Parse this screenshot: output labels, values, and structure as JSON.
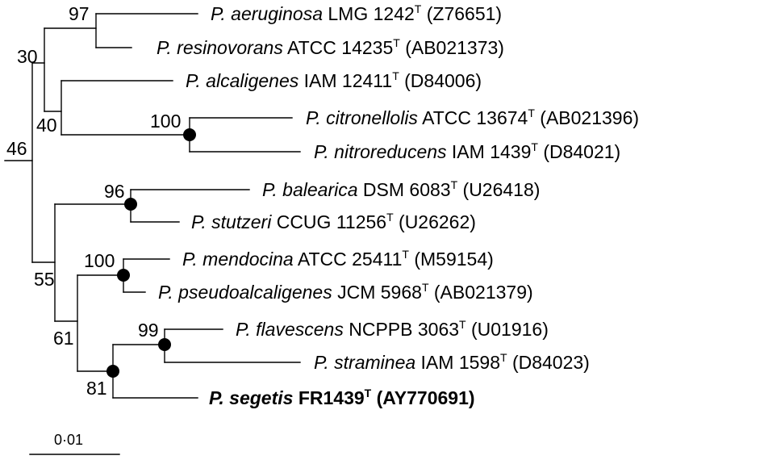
{
  "taxa": [
    {
      "id": "aeruginosa",
      "genus": "P.",
      "species": "aeruginosa",
      "strain": "LMG 1242",
      "type_mark": "T",
      "accession": "(Z76651)",
      "bold": false
    },
    {
      "id": "resinovorans",
      "genus": "P.",
      "species": "resinovorans",
      "strain": "ATCC 14235",
      "type_mark": "T",
      "accession": "(AB021373)",
      "bold": false
    },
    {
      "id": "alcaligenes",
      "genus": "P.",
      "species": "alcaligenes",
      "strain": "IAM 12411",
      "type_mark": "T",
      "accession": "(D84006)",
      "bold": false
    },
    {
      "id": "citronellolis",
      "genus": "P.",
      "species": "citronellolis",
      "strain": "ATCC 13674",
      "type_mark": "T",
      "accession": "(AB021396)",
      "bold": false
    },
    {
      "id": "nitroreducens",
      "genus": "P.",
      "species": "nitroreducens",
      "strain": "IAM 1439",
      "type_mark": "T",
      "accession": "(D84021)",
      "bold": false
    },
    {
      "id": "balearica",
      "genus": "P.",
      "species": "balearica",
      "strain": "DSM 6083",
      "type_mark": "T",
      "accession": "(U26418)",
      "bold": false
    },
    {
      "id": "stutzeri",
      "genus": "P.",
      "species": "stutzeri",
      "strain": "CCUG 11256",
      "type_mark": "T",
      "accession": "(U26262)",
      "bold": false
    },
    {
      "id": "mendocina",
      "genus": "P.",
      "species": "mendocina",
      "strain": "ATCC 25411",
      "type_mark": "T",
      "accession": "(M59154)",
      "bold": false
    },
    {
      "id": "pseudoalcaligenes",
      "genus": "P.",
      "species": "pseudoalcaligenes",
      "strain": "JCM 5968",
      "type_mark": "T",
      "accession": "(AB021379)",
      "bold": false
    },
    {
      "id": "flavescens",
      "genus": "P.",
      "species": "flavescens",
      "strain": "NCPPB 3063",
      "type_mark": "T",
      "accession": "(U01916)",
      "bold": false
    },
    {
      "id": "straminea",
      "genus": "P.",
      "species": "straminea",
      "strain": "IAM 1598",
      "type_mark": "T",
      "accession": "(D84023)",
      "bold": false
    },
    {
      "id": "segetis",
      "genus": "P.",
      "species": "segetis",
      "strain": "FR1439",
      "type_mark": "T",
      "accession": "(AY770691)",
      "bold": true
    }
  ],
  "bootstrap_values": {
    "aeruginosa_resinovorans": "97",
    "top_clade": "30",
    "alcaligenes_group": "40",
    "citronellolis_nitroreducens": "100",
    "upper_group": "46",
    "balearica_stutzeri": "96",
    "lower_group": "55",
    "mendocina_pseudoalcaligenes": "100",
    "mendocina_group": "61",
    "flavescens_straminea": "99",
    "segetis_group": "81"
  },
  "scale_bar": {
    "label": "0·01"
  }
}
